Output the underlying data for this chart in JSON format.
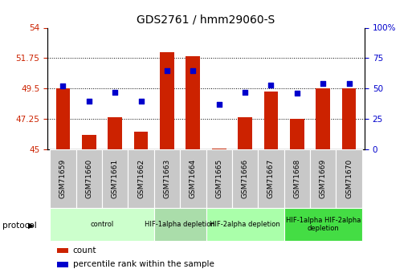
{
  "title": "GDS2761 / hmm29060-S",
  "samples": [
    "GSM71659",
    "GSM71660",
    "GSM71661",
    "GSM71662",
    "GSM71663",
    "GSM71664",
    "GSM71665",
    "GSM71666",
    "GSM71667",
    "GSM71668",
    "GSM71669",
    "GSM71670"
  ],
  "bar_heights": [
    49.5,
    46.1,
    47.4,
    46.3,
    52.2,
    51.9,
    45.1,
    47.4,
    49.3,
    47.25,
    49.5,
    49.5
  ],
  "blue_dots_pct": [
    52,
    40,
    47,
    40,
    65,
    65,
    37,
    47,
    53,
    46,
    54,
    54
  ],
  "ylim_left": [
    45,
    54
  ],
  "ylim_right": [
    0,
    100
  ],
  "yticks_left": [
    45,
    47.25,
    49.5,
    51.75,
    54
  ],
  "yticks_right": [
    0,
    25,
    50,
    75,
    100
  ],
  "ytick_labels_left": [
    "45",
    "47.25",
    "49.5",
    "51.75",
    "54"
  ],
  "ytick_labels_right": [
    "0",
    "25",
    "50",
    "75",
    "100%"
  ],
  "bar_color": "#cc2200",
  "dot_color": "#0000cc",
  "bg_color": "#ffffff",
  "tick_bg": "#c8c8c8",
  "protocol_groups": [
    {
      "label": "control",
      "start": 0,
      "end": 3,
      "color": "#ccffcc"
    },
    {
      "label": "HIF-1alpha depletion",
      "start": 4,
      "end": 5,
      "color": "#aaddaa"
    },
    {
      "label": "HIF-2alpha depletion",
      "start": 6,
      "end": 8,
      "color": "#aaffaa"
    },
    {
      "label": "HIF-1alpha HIF-2alpha\ndepletion",
      "start": 9,
      "end": 11,
      "color": "#44dd44"
    }
  ],
  "legend_items": [
    {
      "label": "count",
      "color": "#cc2200"
    },
    {
      "label": "percentile rank within the sample",
      "color": "#0000cc"
    }
  ]
}
